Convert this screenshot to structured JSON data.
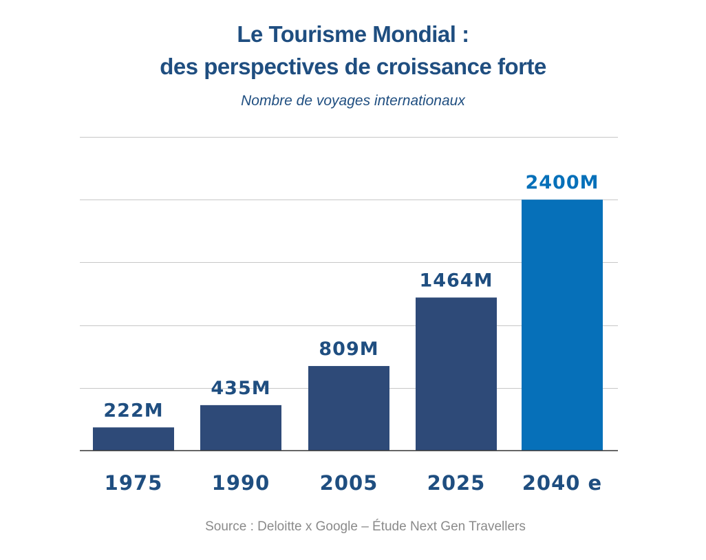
{
  "title_lines": [
    "Le Tourisme Mondial :",
    "des perspectives de croissance forte"
  ],
  "subtitle": "Nombre de voyages internationaux",
  "source": "Source : Deloitte x Google – Étude Next Gen Travellers",
  "colors": {
    "title": "#1f4e80",
    "bar": "#2e4a78",
    "bar_highlight": "#0670b9",
    "value_label": "#1f4e80",
    "value_label_highlight": "#0670b9",
    "gridline": "#c7c7c7",
    "axis": "#333333",
    "source": "#8a8a8a"
  },
  "chart_data": {
    "type": "bar",
    "title": "Le Tourisme Mondial : des perspectives de croissance forte",
    "subtitle": "Nombre de voyages internationaux",
    "xlabel": "",
    "ylabel": "",
    "categories": [
      "1975",
      "1990",
      "2005",
      "2025",
      "2040 e"
    ],
    "values": [
      222,
      435,
      809,
      1464,
      2400
    ],
    "value_labels": [
      "222M",
      "435M",
      "809M",
      "1464M",
      "2400M"
    ],
    "unit": "M",
    "highlight_index": 4,
    "ylim": [
      0,
      3000
    ],
    "gridlines": [
      600,
      1200,
      1800,
      2400,
      3000
    ],
    "grid": true,
    "legend": "none"
  }
}
